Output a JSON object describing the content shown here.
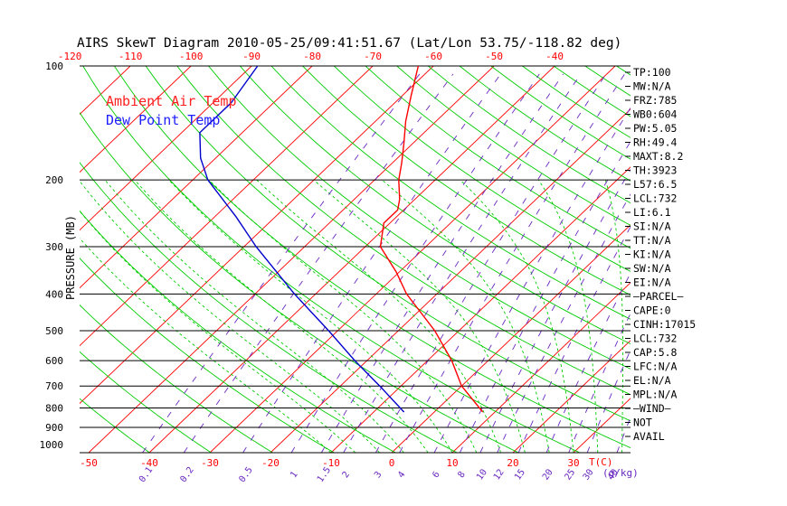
{
  "chart_data": {
    "type": "line",
    "title": "AIRS SkewT Diagram 2010-05-25/09:41:51.67 (Lat/Lon 53.75/-118.82 deg)",
    "ylabel": "PRESSURE (MB)",
    "xlabel_right": "T(C)",
    "mixing_ratio_unit": "(g/kg)",
    "ylim": [
      1000,
      100
    ],
    "y_scale": "log",
    "grid": true,
    "pressure_ticks": [
      "100",
      "200",
      "300",
      "400",
      "500",
      "600",
      "700",
      "800",
      "900",
      "1000"
    ],
    "top_temp_ticks": [
      "-120",
      "-110",
      "-100",
      "-90",
      "-80",
      "-70",
      "-60",
      "-50",
      "-40"
    ],
    "bottom_temp_ticks": [
      "-50",
      "-40",
      "-30",
      "-20",
      "-10",
      "0",
      "10",
      "20",
      "30"
    ],
    "mixing_ratio_labels": [
      "0.1",
      "0.2",
      "0.5",
      "1",
      "1.5",
      "2",
      "3",
      "4",
      "6",
      "8",
      "10",
      "12",
      "15",
      "20",
      "25",
      "30",
      "40"
    ],
    "legend": [
      {
        "name": "Ambient Air Temp",
        "color": "#ff2020"
      },
      {
        "name": "Dew Point Temp",
        "color": "#2020ff"
      }
    ],
    "series": [
      {
        "name": "Ambient Air Temp",
        "color": "#ff0000",
        "points": [
          {
            "p": 820,
            "t": 8.0
          },
          {
            "p": 700,
            "t": 0.0
          },
          {
            "p": 600,
            "t": -6.0
          },
          {
            "p": 500,
            "t": -14.0
          },
          {
            "p": 400,
            "t": -25.0
          },
          {
            "p": 350,
            "t": -30.5
          },
          {
            "p": 300,
            "t": -37.5
          },
          {
            "p": 260,
            "t": -41.0
          },
          {
            "p": 240,
            "t": -41.0
          },
          {
            "p": 225,
            "t": -42.5
          },
          {
            "p": 200,
            "t": -46.0
          },
          {
            "p": 180,
            "t": -48.5
          },
          {
            "p": 160,
            "t": -51.5
          },
          {
            "p": 140,
            "t": -55.0
          },
          {
            "p": 120,
            "t": -58.5
          },
          {
            "p": 100,
            "t": -62.5
          }
        ]
      },
      {
        "name": "Dew Point Temp",
        "color": "#0000cc",
        "points": [
          {
            "p": 820,
            "t": -5.0
          },
          {
            "p": 700,
            "t": -13.5
          },
          {
            "p": 600,
            "t": -22.0
          },
          {
            "p": 500,
            "t": -31.5
          },
          {
            "p": 400,
            "t": -43.5
          },
          {
            "p": 300,
            "t": -58.0
          },
          {
            "p": 250,
            "t": -66.5
          },
          {
            "p": 200,
            "t": -77.5
          },
          {
            "p": 175,
            "t": -82.5
          },
          {
            "p": 150,
            "t": -87.0
          },
          {
            "p": 125,
            "t": -87.0
          },
          {
            "p": 100,
            "t": -89.0
          }
        ]
      }
    ],
    "indices": [
      "TP:100",
      "MW:N/A",
      "FRZ:785",
      "WB0:604",
      "PW:5.05",
      "RH:49.4",
      "MAXT:8.2",
      "TH:3923",
      "L57:6.5",
      "LCL:732",
      "LI:6.1",
      "SI:N/A",
      "TT:N/A",
      "KI:N/A",
      "SW:N/A",
      "EI:N/A",
      "–PARCEL–",
      "CAPE:0",
      "CINH:17015",
      "LCL:732",
      "CAP:5.8",
      "LFC:N/A",
      "EL:N/A",
      "MPL:N/A",
      "–WIND–",
      "NOT",
      "AVAIL"
    ]
  },
  "colors": {
    "isotherm": "#ff0000",
    "dry_adiabat": "#00cc00",
    "moist_adiabat": "#00cc00",
    "mixing_ratio": "#6a28c0",
    "isobar": "#000000",
    "text": "#000000",
    "axis_tick_temp": "#ff0000",
    "axis_tick_mr": "#6a28c0"
  }
}
